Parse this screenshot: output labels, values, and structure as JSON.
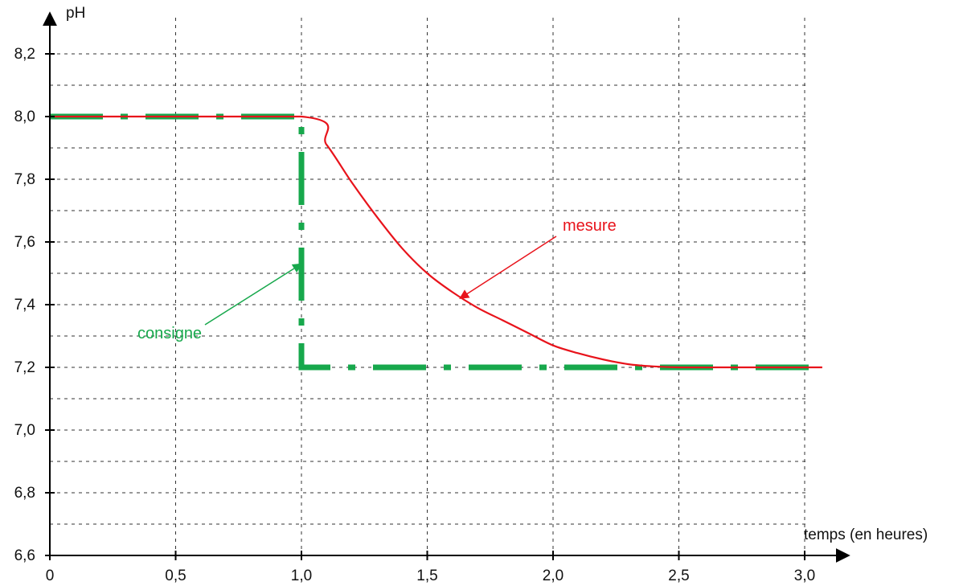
{
  "chart_data": {
    "type": "line",
    "xlabel": "temps (en heures)",
    "ylabel": "pH",
    "xlim": [
      0,
      3.1
    ],
    "ylim": [
      6.6,
      8.3
    ],
    "x_ticks": [
      0,
      0.5,
      1.0,
      1.5,
      2.0,
      2.5,
      3.0
    ],
    "x_tick_labels": [
      "0",
      "0,5",
      "1,0",
      "1,5",
      "2,0",
      "2,5",
      "3,0"
    ],
    "y_ticks": [
      6.6,
      6.8,
      7.0,
      7.2,
      7.4,
      7.6,
      7.8,
      8.0,
      8.2
    ],
    "y_tick_labels": [
      "6,6",
      "6,8",
      "7,0",
      "7,2",
      "7,4",
      "7,6",
      "7,8",
      "8,0",
      "8,2"
    ],
    "grid": true,
    "series": [
      {
        "name": "consigne",
        "color": "#17a84c",
        "style": "dash-dot",
        "x": [
          0,
          1.0,
          1.0,
          3.07
        ],
        "y": [
          8.0,
          8.0,
          7.2,
          7.2
        ]
      },
      {
        "name": "mesure",
        "color": "#e8131b",
        "style": "solid",
        "x": [
          0,
          1.0,
          1.1,
          1.2,
          1.3,
          1.4,
          1.5,
          1.6,
          1.7,
          1.8,
          1.9,
          2.0,
          2.1,
          2.2,
          2.3,
          2.4,
          2.5,
          2.7,
          2.9,
          3.07
        ],
        "y": [
          8.0,
          8.0,
          7.91,
          7.79,
          7.68,
          7.58,
          7.5,
          7.44,
          7.39,
          7.35,
          7.31,
          7.27,
          7.245,
          7.225,
          7.21,
          7.203,
          7.2,
          7.2,
          7.2,
          7.2
        ]
      }
    ],
    "annotations": [
      {
        "text": "mesure",
        "color": "#e8131b",
        "arrow_to": [
          1.63,
          7.42
        ]
      },
      {
        "text": "consigne",
        "color": "#17a84c",
        "arrow_to": [
          1.0,
          7.53
        ]
      }
    ]
  }
}
